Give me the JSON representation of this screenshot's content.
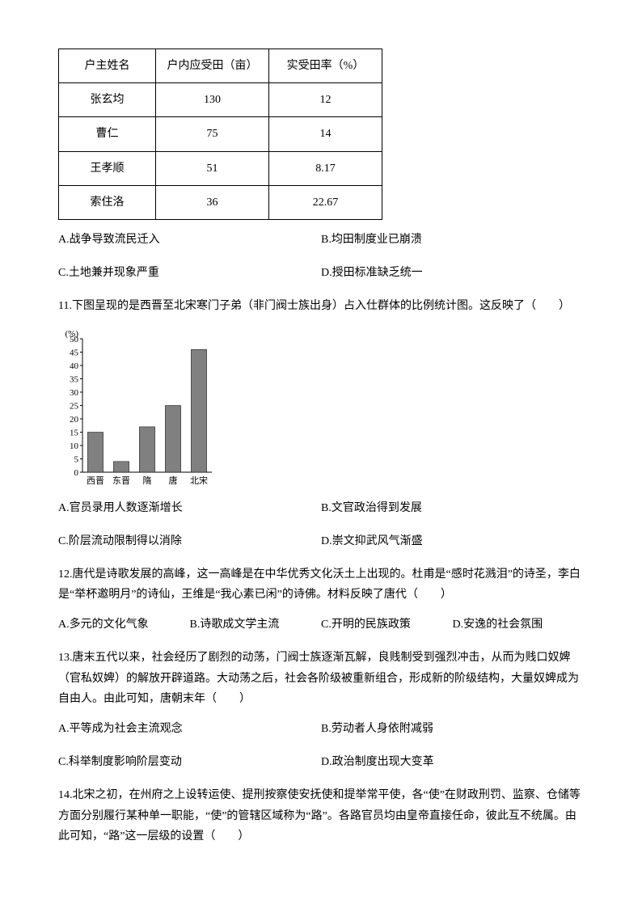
{
  "table": {
    "headers": [
      "户主姓名",
      "户内应受田（亩）",
      "实受田率（%）"
    ],
    "rows": [
      [
        "张玄均",
        "130",
        "12"
      ],
      [
        "曹仁",
        "75",
        "14"
      ],
      [
        "王孝顺",
        "51",
        "8.17"
      ],
      [
        "索住洛",
        "36",
        "22.67"
      ]
    ]
  },
  "q10": {
    "optA": "A.战争导致流民迁入",
    "optB": "B.均田制度业已崩溃",
    "optC": "C.土地兼并现象严重",
    "optD": "D.授田标准缺乏统一"
  },
  "q11": {
    "text": "11.下图呈现的是西晋至北宋寒门子弟（非门阀士族出身）占入仕群体的比例统计图。这反映了（　　）",
    "optA": "A.官员录用人数逐渐增长",
    "optB": "B.文官政治得到发展",
    "optC": "C.阶层流动限制得以消除",
    "optD": "D.崇文抑武风气渐盛",
    "chart": {
      "type": "bar",
      "categories": [
        "西晋",
        "东晋",
        "隋",
        "唐",
        "北宋"
      ],
      "values": [
        15,
        4,
        17,
        25,
        46
      ],
      "ylabel": "(%)",
      "ymax": 50,
      "ytick_step": 5,
      "bar_color": "#808080",
      "axis_color": "#000000",
      "label_fontsize": 11,
      "background_color": "#ffffff"
    }
  },
  "q12": {
    "text": "12.唐代是诗歌发展的高峰，这一高峰是在中华优秀文化沃土上出现的。杜甫是“感时花溅泪”的诗圣，李白是“举杯邀明月”的诗仙，王维是“我心素已闲”的诗佛。材料反映了唐代（　　）",
    "optA": "A.多元的文化气象",
    "optB": "B.诗歌成文学主流",
    "optC": "C.开明的民族政策",
    "optD": "D.安逸的社会氛围"
  },
  "q13": {
    "text": "13.唐末五代以来，社会经历了剧烈的动荡，门阀士族逐渐瓦解，良贱制受到强烈冲击，从而为贱口奴婢（官私奴婢）的解放开辟道路。大动荡之后，社会各阶级被重新组合，形成新的阶级结构，大量奴婢成为自由人。由此可知，唐朝末年（　　）",
    "optA": "A.平等成为社会主流观念",
    "optB": "B.劳动者人身依附减弱",
    "optC": "C.科举制度影响阶层变动",
    "optD": "D.政治制度出现大变革"
  },
  "q14": {
    "text": "14.北宋之初，在州府之上设转运使、提刑按察使安抚使和提举常平使，各“使”在财政刑罚、监察、仓储等方面分别履行某种单一职能，“使”的管辖区域称为“路”。各路官员均由皇帝直接任命，彼此互不统属。由此可知，“路”这一层级的设置（　　）"
  }
}
